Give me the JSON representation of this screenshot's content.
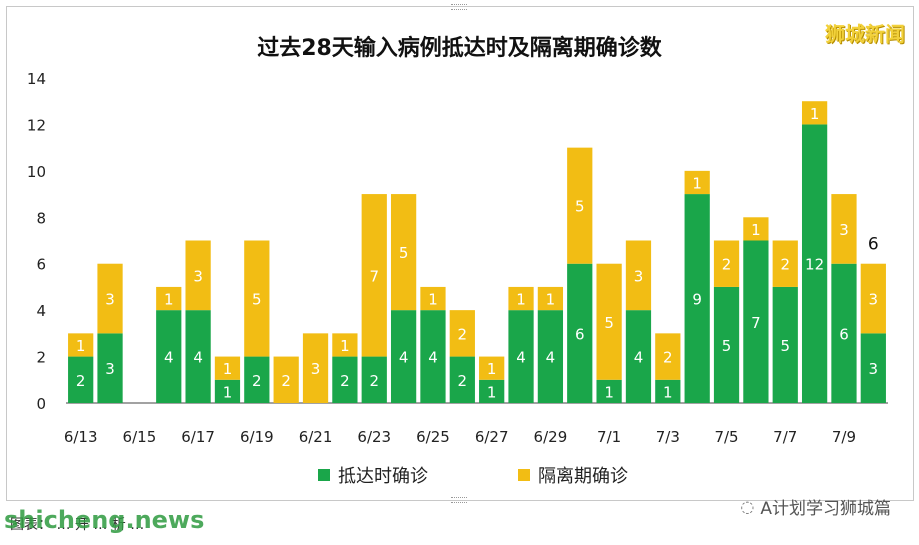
{
  "title": "过去28天输入病例抵达时及隔离期确诊数",
  "brand_top": "狮城新闻",
  "watermark": "A计划学习狮城篇",
  "footer": {
    "caption": "图表：  … 开 … 析 …",
    "site": "shicheng.news"
  },
  "colors": {
    "arrival": "#1aa64a",
    "quarantine": "#f2bd14",
    "axis": "#333333"
  },
  "chart_data": {
    "type": "bar",
    "stacked": true,
    "title": "过去28天输入病例抵达时及隔离期确诊数",
    "categories": [
      "6/13",
      "6/14",
      "6/15",
      "6/16",
      "6/17",
      "6/18",
      "6/19",
      "6/20",
      "6/21",
      "6/22",
      "6/23",
      "6/24",
      "6/25",
      "6/26",
      "6/27",
      "6/28",
      "6/29",
      "6/30",
      "7/1",
      "7/2",
      "7/3",
      "7/4",
      "7/5",
      "7/6",
      "7/7",
      "7/8",
      "7/9",
      "7/10"
    ],
    "x_tick_labels": [
      "6/13",
      "6/15",
      "6/17",
      "6/19",
      "6/21",
      "6/23",
      "6/25",
      "6/27",
      "6/29",
      "7/1",
      "7/3",
      "7/5",
      "7/7",
      "7/9"
    ],
    "series": [
      {
        "name": "抵达时确诊",
        "values": [
          2,
          3,
          0,
          4,
          4,
          1,
          2,
          0,
          0,
          2,
          2,
          4,
          4,
          2,
          1,
          4,
          4,
          6,
          1,
          4,
          1,
          9,
          5,
          7,
          5,
          12,
          6,
          3
        ]
      },
      {
        "name": "隔离期确诊",
        "values": [
          1,
          3,
          0,
          1,
          3,
          1,
          5,
          2,
          3,
          1,
          7,
          5,
          1,
          2,
          1,
          1,
          1,
          5,
          5,
          3,
          2,
          1,
          2,
          1,
          2,
          1,
          3,
          3
        ]
      }
    ],
    "totals_label_shown": {
      "index": 27,
      "text": "6"
    },
    "ylim": [
      0,
      14
    ],
    "yticks": [
      0,
      2,
      4,
      6,
      8,
      10,
      12,
      14
    ],
    "grid": false,
    "legend_position": "bottom"
  },
  "legend": [
    {
      "label": "抵达时确诊",
      "color": "#1aa64a"
    },
    {
      "label": "隔离期确诊",
      "color": "#f2bd14"
    }
  ]
}
